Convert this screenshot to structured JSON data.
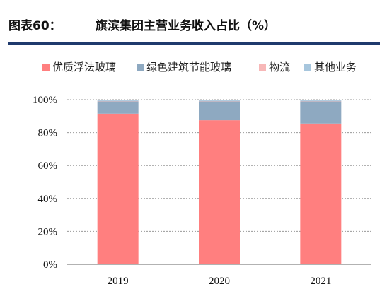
{
  "header": {
    "label": "图表60：",
    "title": "旗滨集团主营业务收入占比（%）"
  },
  "chart_data": {
    "type": "bar",
    "stacked": true,
    "categories": [
      "2019",
      "2020",
      "2021"
    ],
    "series": [
      {
        "name": "优质浮法玻璃",
        "color": "#ff7f7f",
        "values": [
          91.5,
          87.5,
          85.5
        ]
      },
      {
        "name": "绿色建筑节能玻璃",
        "color": "#8ea9c1",
        "values": [
          7.5,
          11.5,
          13.5
        ]
      },
      {
        "name": "物流",
        "color": "#f7b7b7",
        "values": [
          0.2,
          0.2,
          0.2
        ]
      },
      {
        "name": "其他业务",
        "color": "#a7c6dd",
        "values": [
          0.8,
          0.8,
          0.8
        ]
      }
    ],
    "y_ticks": [
      "0%",
      "20%",
      "40%",
      "60%",
      "80%",
      "100%"
    ],
    "ylim": [
      0,
      100
    ],
    "grid": true,
    "legend": "top"
  }
}
